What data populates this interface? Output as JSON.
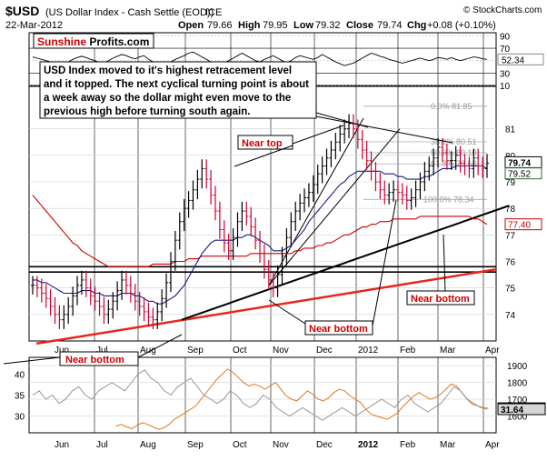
{
  "header": {
    "symbol": "$USD",
    "description": "(US Dollar Index - Cash Settle (EOD))",
    "exchange": "ICE",
    "credit": "© StockCharts.com",
    "date": "22-Mar-2012",
    "ohlc": {
      "open_label": "Open",
      "open": "79.66",
      "high_label": "High",
      "high": "79.95",
      "low_label": "Low",
      "low": "79.32",
      "close_label": "Close",
      "close": "79.74",
      "chg_label": "Chg",
      "chg": "+0.08 (+0.10%)"
    }
  },
  "logo": {
    "part1": "Sunshine",
    "part2": "Profits.com"
  },
  "annotations": {
    "comment": [
      "USD Index moved to it's highest retracement level",
      "and it topped. The next cyclical turning point is about",
      "a week away so the dollar might even move to the",
      "previous high before turning south again."
    ],
    "near_top": "Near top",
    "near_bottom_1": "Near bottom",
    "near_bottom_2": "Near bottom",
    "near_bottom_3": "Near bottom"
  },
  "fib_labels": [
    "0.0% 81.85",
    "38.2% 80.51",
    "50.0% 80.10",
    "61.8% 79.68",
    "100.0% 78.34"
  ],
  "colors": {
    "price": "#000000",
    "up_bar": "#000000",
    "down_bar": "#cc0033",
    "ma50": "#1a1a8c",
    "ma200": "#cc0000",
    "support": "#e8261b",
    "gold": "#e07a1f",
    "gray_line": "#999999",
    "logo_red": "#cc0000",
    "tag_green": "#2e6b2e",
    "tag_red": "#cc0000",
    "tag_orange": "#e07a1f",
    "tag_gray": "#8c8c8c"
  },
  "chart_data": [
    {
      "type": "line",
      "panel": "RSI (top)",
      "ylim": [
        10,
        95
      ],
      "y_ticks": [
        10,
        30,
        50,
        70,
        90
      ],
      "last_value": "52.34",
      "values": [
        56,
        54,
        52,
        50,
        48,
        44,
        42,
        45,
        48,
        52,
        55,
        57,
        55,
        52,
        50,
        47,
        45,
        50,
        54,
        57,
        60,
        58,
        55,
        53,
        56,
        58,
        52,
        48,
        44,
        41,
        45,
        48,
        52,
        55,
        58,
        62,
        64,
        60,
        56,
        52,
        48,
        45,
        42,
        46,
        50,
        54,
        58,
        62,
        58,
        54,
        50,
        48,
        52,
        55,
        58,
        54,
        50,
        46,
        50,
        55,
        58,
        56,
        54,
        52,
        55,
        60,
        56,
        52,
        48,
        45,
        42,
        44,
        46,
        50,
        54,
        58,
        62,
        60,
        57,
        55,
        52,
        50,
        48,
        46,
        48,
        50,
        52,
        54,
        52,
        50,
        52,
        55,
        54,
        52,
        55,
        52,
        50,
        52,
        54,
        56,
        55,
        53,
        52
      ]
    },
    {
      "type": "line",
      "panel": "price (main)",
      "ylim": [
        73,
        82.6
      ],
      "y_ticks": [
        74,
        75,
        76,
        77,
        78,
        79,
        80,
        81
      ],
      "x_tick_labels": [
        "Jun",
        "Jul",
        "Aug",
        "Sep",
        "Oct",
        "Nov",
        "Dec",
        "2012",
        "Feb",
        "Mar",
        "Apr"
      ],
      "series": [
        {
          "values": [
            75.1,
            75.0,
            74.8,
            74.6,
            74.3,
            74.0,
            73.8,
            74.0,
            74.3,
            74.7,
            75.1,
            75.3,
            75.0,
            74.7,
            74.5,
            74.3,
            74.0,
            74.2,
            74.5,
            74.9,
            75.3,
            75.1,
            74.8,
            74.5,
            74.3,
            74.1,
            73.9,
            73.8,
            74.1,
            74.6,
            75.2,
            76.0,
            76.8,
            77.5,
            78.0,
            78.3,
            78.7,
            79.1,
            79.5,
            79.1,
            78.5,
            77.9,
            77.2,
            76.7,
            76.4,
            76.9,
            77.5,
            77.9,
            77.7,
            77.3,
            76.8,
            76.3,
            75.7,
            75.3,
            75.0,
            75.5,
            76.2,
            76.9,
            77.5,
            77.9,
            78.2,
            78.4,
            78.6,
            78.9,
            79.3,
            79.6,
            79.9,
            80.2,
            80.5,
            80.8,
            81.0,
            81.2,
            81.0,
            80.6,
            80.2,
            79.8,
            79.4,
            79.0,
            78.7,
            78.5,
            78.6,
            78.7,
            78.6,
            78.5,
            78.3,
            78.4,
            78.7,
            79.0,
            79.4,
            79.6,
            79.9,
            80.3,
            80.1,
            79.8,
            79.8,
            80.0,
            79.7,
            79.6,
            79.5,
            79.9,
            79.6,
            79.5,
            79.7
          ]
        },
        {
          "values": [
            75.3,
            75.3,
            75.2,
            75.2,
            75.1,
            75.0,
            74.9,
            74.8,
            74.8,
            74.8,
            74.8,
            74.9,
            74.9,
            74.9,
            74.8,
            74.8,
            74.7,
            74.7,
            74.7,
            74.7,
            74.8,
            74.8,
            74.8,
            74.7,
            74.7,
            74.6,
            74.5,
            74.5,
            74.4,
            74.4,
            74.5,
            74.6,
            74.7,
            74.9,
            75.1,
            75.4,
            75.7,
            76.0,
            76.3,
            76.5,
            76.7,
            76.8,
            76.8,
            76.8,
            76.8,
            76.8,
            76.9,
            76.9,
            77.0,
            77.0,
            76.9,
            76.8,
            76.7,
            76.6,
            76.4,
            76.4,
            76.4,
            76.5,
            76.6,
            76.8,
            77.0,
            77.2,
            77.5,
            77.7,
            77.9,
            78.1,
            78.3,
            78.5,
            78.7,
            78.9,
            79.0,
            79.2,
            79.3,
            79.4,
            79.4,
            79.4,
            79.4,
            79.4,
            79.4,
            79.3,
            79.3,
            79.3,
            79.2,
            79.2,
            79.1,
            79.1,
            79.1,
            79.1,
            79.2,
            79.2,
            79.3,
            79.4,
            79.5,
            79.5,
            79.5,
            79.6,
            79.6,
            79.6,
            79.6,
            79.6,
            79.6,
            79.6,
            79.5
          ]
        },
        {
          "values": [
            78.5,
            78.3,
            78.1,
            77.9,
            77.7,
            77.5,
            77.3,
            77.1,
            76.9,
            76.7,
            76.6,
            76.4,
            76.3,
            76.2,
            76.1,
            76.0,
            75.9,
            75.8,
            75.8,
            75.8,
            75.8,
            75.8,
            75.8,
            75.8,
            75.8,
            75.8,
            75.8,
            75.9,
            75.9,
            75.9,
            75.9,
            75.9,
            76.0,
            76.0,
            76.0,
            76.1,
            76.1,
            76.1,
            76.2,
            76.2,
            76.2,
            76.2,
            76.2,
            76.2,
            76.2,
            76.2,
            76.2,
            76.2,
            76.2,
            76.3,
            76.3,
            76.3,
            76.3,
            76.3,
            76.3,
            76.3,
            76.3,
            76.3,
            76.3,
            76.4,
            76.4,
            76.5,
            76.5,
            76.5,
            76.6,
            76.6,
            76.7,
            76.7,
            76.8,
            76.9,
            77.0,
            77.0,
            77.1,
            77.2,
            77.3,
            77.3,
            77.4,
            77.4,
            77.5,
            77.5,
            77.5,
            77.6,
            77.6,
            77.6,
            77.6,
            77.6,
            77.6,
            77.7,
            77.7,
            77.7,
            77.7,
            77.7,
            77.7,
            77.7,
            77.7,
            77.7,
            77.7,
            77.7,
            77.7,
            77.6,
            77.6,
            77.5,
            77.4
          ]
        }
      ],
      "ma200_last": "77.40",
      "ma50_last": "79.52",
      "last_close": "79.74",
      "horizontal_levels": [
        75.6,
        75.8
      ]
    },
    {
      "type": "line",
      "panel": "comparison (bottom)",
      "left_ticks": [
        30,
        35,
        40
      ],
      "right_ticks": [
        1600,
        1700,
        1800,
        1900
      ],
      "series": [
        {
          "values": [
            1540,
            1550,
            1535,
            1525,
            1545,
            1560,
            1550,
            1535,
            1520,
            1530,
            1550,
            1580,
            1600,
            1620,
            1640,
            1660,
            1700,
            1740,
            1780,
            1820,
            1850,
            1880,
            1860,
            1830,
            1800,
            1780,
            1790,
            1780,
            1760,
            1780,
            1800,
            1760,
            1720,
            1700,
            1690,
            1720,
            1750,
            1730,
            1700,
            1690,
            1710,
            1740,
            1760,
            1750,
            1720,
            1700,
            1680,
            1640,
            1610,
            1600,
            1590,
            1580,
            1600,
            1620,
            1660,
            1690,
            1720,
            1740,
            1720,
            1700,
            1710,
            1730,
            1760,
            1790,
            1780,
            1740,
            1700,
            1670,
            1660,
            1650,
            1646
          ]
        },
        {
          "values": [
            35,
            36,
            34,
            35,
            33,
            34,
            36,
            37,
            35,
            34,
            36,
            37,
            38,
            37,
            36,
            38,
            40,
            41,
            39,
            38,
            36,
            35,
            37,
            38,
            39,
            37,
            35,
            34,
            33,
            34,
            36,
            35,
            33,
            32,
            33,
            35,
            34,
            32,
            31,
            30,
            31,
            32,
            31,
            30,
            29,
            30,
            31,
            32,
            31,
            30,
            31,
            32,
            33,
            34,
            33,
            32,
            34,
            35,
            33,
            32,
            31,
            32,
            33,
            35,
            37,
            36,
            34,
            33,
            32,
            31.64
          ]
        }
      ],
      "left_last": "31.64",
      "right_last": "1645.90"
    }
  ]
}
